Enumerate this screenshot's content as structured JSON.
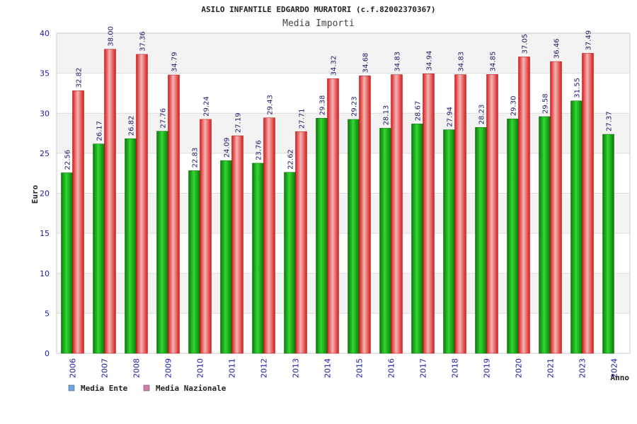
{
  "chart_data": {
    "type": "bar",
    "title": "ASILO INFANTILE EDGARDO MURATORI (c.f.82002370367)",
    "subtitle": "Media Importi",
    "xlabel": "Anno",
    "ylabel": "Euro",
    "ylim": [
      0,
      40
    ],
    "yticks": [
      "0",
      "5",
      "10",
      "15",
      "20",
      "25",
      "30",
      "35",
      "40"
    ],
    "grid": true,
    "legend_position": "bottom-left",
    "categories": [
      "2006",
      "2007",
      "2008",
      "2009",
      "2010",
      "2011",
      "2012",
      "2013",
      "2014",
      "2015",
      "2016",
      "2017",
      "2018",
      "2019",
      "2020",
      "2021",
      "2023",
      "2024"
    ],
    "series": [
      {
        "name": "Media Ente",
        "color": "#1fae1f",
        "legend_color": "#6aa6e6",
        "values": [
          22.56,
          26.17,
          26.82,
          27.76,
          22.83,
          24.09,
          23.76,
          22.62,
          29.38,
          29.23,
          28.13,
          28.67,
          27.94,
          28.23,
          29.3,
          29.58,
          31.55,
          27.37
        ],
        "labels": [
          "22.56",
          "26.17",
          "26.82",
          "27.76",
          "22.83",
          "24.09",
          "23.76",
          "22.62",
          "29.38",
          "29.23",
          "28.13",
          "28.67",
          "27.94",
          "28.23",
          "29.30",
          "29.58",
          "31.55",
          "27.37"
        ]
      },
      {
        "name": "Media Nazionale",
        "color": "#e8383a",
        "legend_color": "#d77aa6",
        "values": [
          32.82,
          38.0,
          37.36,
          34.79,
          29.24,
          27.19,
          29.43,
          27.71,
          34.32,
          34.68,
          34.83,
          34.94,
          34.83,
          34.85,
          37.05,
          36.46,
          37.49,
          null
        ],
        "labels": [
          "32.82",
          "38.00",
          "37.36",
          "34.79",
          "29.24",
          "27.19",
          "29.43",
          "27.71",
          "34.32",
          "34.68",
          "34.83",
          "34.94",
          "34.83",
          "34.85",
          "37.05",
          "36.46",
          "37.49",
          null
        ]
      }
    ]
  }
}
